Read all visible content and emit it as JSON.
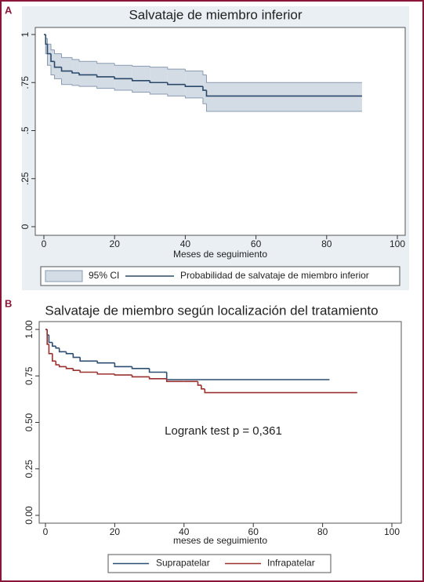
{
  "chart_data": [
    {
      "type": "step-line",
      "panel": "A",
      "title": "Salvataje de miembro inferior",
      "x_label": "Meses de seguimiento",
      "xlim": [
        0,
        100
      ],
      "ylim": [
        0,
        1
      ],
      "xticks": [
        0,
        20,
        40,
        60,
        80,
        100
      ],
      "yticks": [
        0,
        {
          "value": 0.25,
          "label": ".25"
        },
        {
          "value": 0.5,
          "label": ".5"
        },
        {
          "value": 0.75,
          "label": ".75"
        },
        1
      ],
      "grid": false,
      "legend": "bottom",
      "background": "#e9eff3",
      "series": [
        {
          "name": "95% CI",
          "color": "#d3dbe4",
          "x": [
            0,
            0.5,
            1,
            2,
            3,
            5,
            8,
            10,
            15,
            20,
            25,
            30,
            35,
            40,
            45,
            46,
            90
          ],
          "upper": [
            1,
            0.98,
            0.95,
            0.92,
            0.9,
            0.88,
            0.87,
            0.86,
            0.85,
            0.84,
            0.835,
            0.83,
            0.82,
            0.81,
            0.79,
            0.75,
            0.75
          ],
          "lower": [
            1,
            0.9,
            0.84,
            0.79,
            0.77,
            0.74,
            0.735,
            0.73,
            0.72,
            0.71,
            0.7,
            0.69,
            0.68,
            0.67,
            0.64,
            0.6,
            0.6
          ]
        },
        {
          "name": "Probabilidad de salvataje de miembro inferior",
          "color": "#2b4a6b",
          "x": [
            0,
            0.5,
            1,
            2,
            3,
            5,
            8,
            10,
            15,
            20,
            25,
            30,
            35,
            40,
            45,
            46,
            90
          ],
          "values": [
            1,
            0.95,
            0.9,
            0.86,
            0.83,
            0.81,
            0.8,
            0.79,
            0.78,
            0.77,
            0.76,
            0.75,
            0.74,
            0.73,
            0.71,
            0.68,
            0.68
          ]
        }
      ]
    },
    {
      "type": "step-line",
      "panel": "B",
      "title": "Salvataje de miembro según localización del tratamiento",
      "x_label": "meses de seguimiento",
      "annotation": "Logrank test p = 0,361",
      "xlim": [
        0,
        100
      ],
      "ylim": [
        0,
        1
      ],
      "xticks": [
        0,
        20,
        40,
        60,
        80,
        100
      ],
      "yticks": [
        {
          "value": 0,
          "label": "0.00"
        },
        {
          "value": 0.25,
          "label": "0.25"
        },
        {
          "value": 0.5,
          "label": "0.50"
        },
        {
          "value": 0.75,
          "label": "0.75"
        },
        {
          "value": 1,
          "label": "1.00"
        }
      ],
      "grid": false,
      "legend": "bottom",
      "background": "#ffffff",
      "series": [
        {
          "name": "Suprapatelar",
          "color": "#2d4e70",
          "x": [
            0,
            0.5,
            1,
            2,
            3,
            4,
            6,
            8,
            10,
            15,
            20,
            25,
            30,
            34,
            35,
            82
          ],
          "values": [
            1,
            0.97,
            0.93,
            0.91,
            0.9,
            0.88,
            0.87,
            0.85,
            0.83,
            0.82,
            0.8,
            0.79,
            0.77,
            0.77,
            0.73,
            0.73
          ]
        },
        {
          "name": "Infrapatelar",
          "color": "#9b3030",
          "x": [
            0,
            0.5,
            1,
            2,
            3,
            4,
            6,
            8,
            10,
            15,
            20,
            25,
            30,
            35,
            40,
            44,
            45,
            46,
            90
          ],
          "values": [
            1,
            0.92,
            0.87,
            0.83,
            0.81,
            0.8,
            0.79,
            0.78,
            0.77,
            0.76,
            0.755,
            0.745,
            0.735,
            0.72,
            0.72,
            0.7,
            0.68,
            0.66,
            0.66
          ]
        }
      ]
    }
  ]
}
